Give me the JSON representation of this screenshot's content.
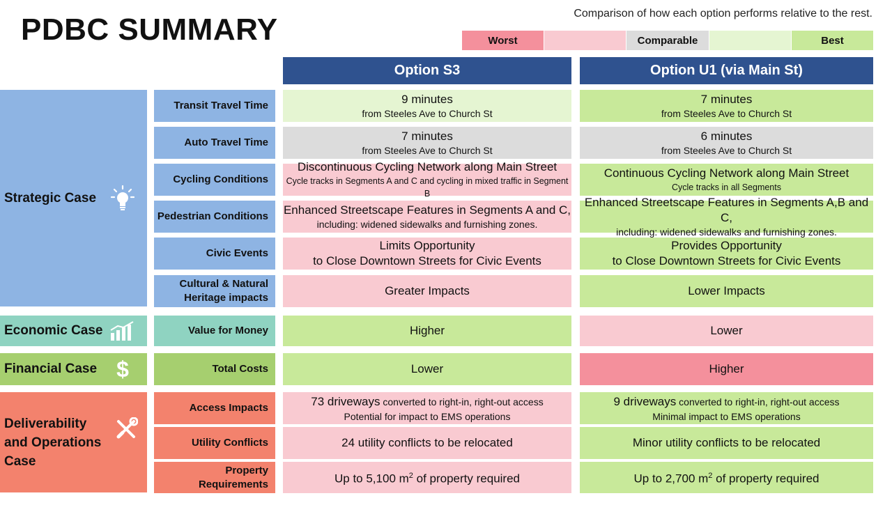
{
  "title": "PDBC SUMMARY",
  "legend": {
    "caption": "Comparison of how each option performs relative to the rest.",
    "worst": "Worst",
    "comparable": "Comparable",
    "best": "Best",
    "colors": {
      "worst": "#f4909c",
      "worse": "#f9cad1",
      "comparable": "#dcdcdc",
      "better": "#e5f5d2",
      "best": "#c8e99a"
    }
  },
  "options": [
    "Option S3",
    "Option U1 (via Main St)"
  ],
  "cases": {
    "strategic": {
      "label": "Strategic Case",
      "color": "#8eb4e3",
      "icon": "lightbulb-icon"
    },
    "economic": {
      "label": "Economic Case",
      "color": "#8fd3c1",
      "icon": "bar-chart-icon"
    },
    "financial": {
      "label": "Financial Case",
      "color": "#a6cf6f",
      "icon": "dollar-icon"
    },
    "deliverability": {
      "label": "Deliverability and Operations Case",
      "color": "#f3826d",
      "icon": "tools-icon"
    }
  },
  "rows": [
    {
      "criterion": "Transit Travel Time",
      "s3": {
        "main": "9 minutes",
        "sub": "from Steeles Ave to Church St",
        "rating": "better"
      },
      "u1": {
        "main": "7 minutes",
        "sub": "from Steeles Ave to Church St",
        "rating": "best"
      }
    },
    {
      "criterion": "Auto Travel Time",
      "s3": {
        "main": "7 minutes",
        "sub": "from Steeles Ave to Church St",
        "rating": "comparable"
      },
      "u1": {
        "main": "6 minutes",
        "sub": "from Steeles Ave to Church St",
        "rating": "comparable"
      }
    },
    {
      "criterion": "Cycling Conditions",
      "s3": {
        "main": "Discontinuous Cycling Network along Main Street",
        "sub": "Cycle tracks in Segments A and C and cycling in mixed traffic in Segment B",
        "rating": "worse"
      },
      "u1": {
        "main": "Continuous Cycling Network along Main Street",
        "sub": "Cycle tracks in all Segments",
        "rating": "best"
      }
    },
    {
      "criterion": "Pedestrian Conditions",
      "s3": {
        "main": "Enhanced Streetscape Features in Segments A and C,",
        "sub": "including: widened sidewalks and furnishing zones.",
        "rating": "worse"
      },
      "u1": {
        "main": "Enhanced Streetscape Features in Segments A,B and C,",
        "sub": "including: widened sidewalks and furnishing zones.",
        "rating": "best"
      }
    },
    {
      "criterion": "Civic Events",
      "s3": {
        "main": "Limits Opportunity",
        "main2": "to Close Downtown Streets for Civic Events",
        "rating": "worse"
      },
      "u1": {
        "main": "Provides Opportunity",
        "main2": "to Close Downtown Streets for Civic Events",
        "rating": "best"
      }
    },
    {
      "criterion_line1": "Cultural & Natural",
      "criterion_line2": "Heritage impacts",
      "s3": {
        "main": "Greater Impacts",
        "rating": "worse"
      },
      "u1": {
        "main": "Lower Impacts",
        "rating": "best"
      }
    },
    {
      "criterion": "Value for Money",
      "s3": {
        "main": "Higher",
        "rating": "best"
      },
      "u1": {
        "main": "Lower",
        "rating": "worse"
      }
    },
    {
      "criterion": "Total Costs",
      "s3": {
        "main": "Lower",
        "rating": "best"
      },
      "u1": {
        "main": "Higher",
        "rating": "worst"
      }
    },
    {
      "criterion": "Access Impacts",
      "s3": {
        "main_big": "73 driveways",
        "main_small": " converted to right-in, right-out access",
        "sub": "Potential for impact to EMS operations",
        "rating": "worse"
      },
      "u1": {
        "main_big": "9 driveways",
        "main_small": " converted to right-in, right-out access",
        "sub": "Minimal impact to EMS operations",
        "rating": "best"
      }
    },
    {
      "criterion": "Utility Conflicts",
      "s3": {
        "main": "24 utility conflicts to be relocated",
        "rating": "worse"
      },
      "u1": {
        "main": "Minor utility conflicts to be relocated",
        "rating": "best"
      }
    },
    {
      "criterion": "Property Requirements",
      "s3": {
        "pre": "Up to 5,100 m",
        "sup": "2",
        "post": " of property required",
        "rating": "worse"
      },
      "u1": {
        "pre": "Up to 2,700 m",
        "sup": "2",
        "post": " of property required",
        "rating": "best"
      }
    }
  ]
}
